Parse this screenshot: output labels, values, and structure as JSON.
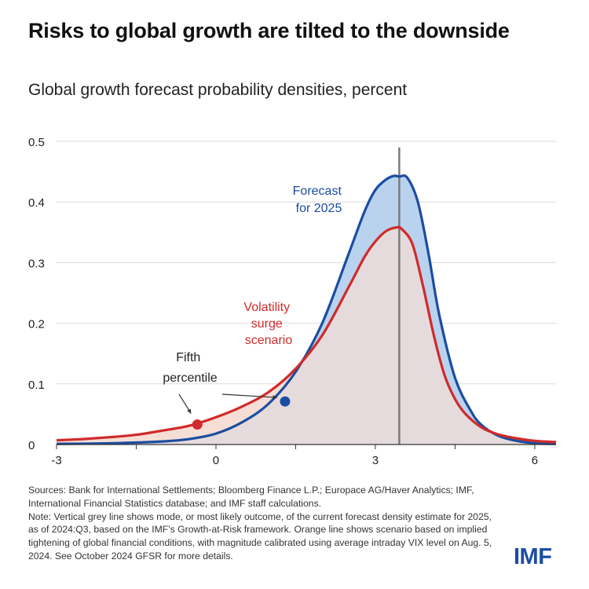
{
  "header": {
    "title": "Risks to global growth are tilted to the downside",
    "subtitle": "Global growth forecast probability densities, percent"
  },
  "footer": {
    "sources": "Sources:  Bank for International Settlements; Bloomberg Finance L.P.; Europace AG/Haver Analytics; IMF, International Financial Statistics database; and IMF staff calculations.",
    "note": "Note: Vertical grey line shows mode, or most likely outcome, of the current forecast density estimate for 2025, as of 2024:Q3,  based on the IMF’s Growth-at-Risk framework. Orange line shows scenario based on implied tightening of global financial conditions, with magnitude calibrated using average intraday VIX level on Aug. 5, 2024. See October 2024 GFSR for more details.",
    "logo": "IMF"
  },
  "chart_data": {
    "type": "area",
    "title": "Risks to global growth are tilted to the downside",
    "subtitle": "Global growth forecast probability densities, percent",
    "xlim": [
      -3,
      6.4
    ],
    "ylim": [
      0,
      0.5
    ],
    "x_ticks": [
      -3,
      0,
      3,
      6
    ],
    "x_tick_labels": [
      "-3",
      "0",
      "3",
      "6"
    ],
    "y_ticks": [
      0,
      0.1,
      0.2,
      0.3,
      0.4,
      0.5
    ],
    "y_tick_labels": [
      "0",
      "0.1",
      "0.2",
      "0.3",
      "0.4",
      "0.5"
    ],
    "grid": true,
    "mode_line_x": 3.45,
    "series": [
      {
        "name": "Forecast for 2025",
        "label_lines": [
          "Forecast",
          "for 2025"
        ],
        "color": "#1b4da1",
        "fill": "#b9d3ee",
        "x": [
          -3,
          -2,
          -1,
          -0.5,
          0,
          0.5,
          1,
          1.5,
          2,
          2.5,
          2.8,
          3,
          3.2,
          3.35,
          3.45,
          3.6,
          3.8,
          4,
          4.2,
          4.5,
          4.8,
          5,
          5.3,
          5.6,
          6,
          6.4
        ],
        "y": [
          0.001,
          0.002,
          0.005,
          0.009,
          0.018,
          0.037,
          0.068,
          0.12,
          0.2,
          0.315,
          0.385,
          0.42,
          0.437,
          0.443,
          0.442,
          0.44,
          0.4,
          0.315,
          0.215,
          0.11,
          0.055,
          0.032,
          0.015,
          0.007,
          0.002,
          0.001
        ],
        "fifth_percentile": [
          1.3,
          0.071
        ]
      },
      {
        "name": "Volatility surge scenario",
        "label_lines": [
          "Volatility",
          "surge",
          "scenario"
        ],
        "color": "#d12a2a",
        "fill": "#f4ddd6",
        "x": [
          -3,
          -2.5,
          -2,
          -1.5,
          -1,
          -0.5,
          0,
          0.5,
          1,
          1.5,
          2,
          2.5,
          2.8,
          3,
          3.2,
          3.4,
          3.5,
          3.7,
          3.9,
          4.1,
          4.3,
          4.5,
          4.7,
          5,
          5.3,
          5.6,
          6,
          6.4
        ],
        "y": [
          0.007,
          0.009,
          0.012,
          0.016,
          0.023,
          0.031,
          0.045,
          0.063,
          0.087,
          0.125,
          0.18,
          0.26,
          0.31,
          0.335,
          0.352,
          0.358,
          0.355,
          0.33,
          0.26,
          0.18,
          0.115,
          0.075,
          0.05,
          0.028,
          0.017,
          0.011,
          0.006,
          0.004
        ],
        "fifth_percentile": [
          -0.35,
          0.033
        ]
      }
    ],
    "annotations": [
      {
        "name": "fifth-percentile",
        "text_lines": [
          "Fifth",
          "percentile"
        ]
      }
    ]
  }
}
